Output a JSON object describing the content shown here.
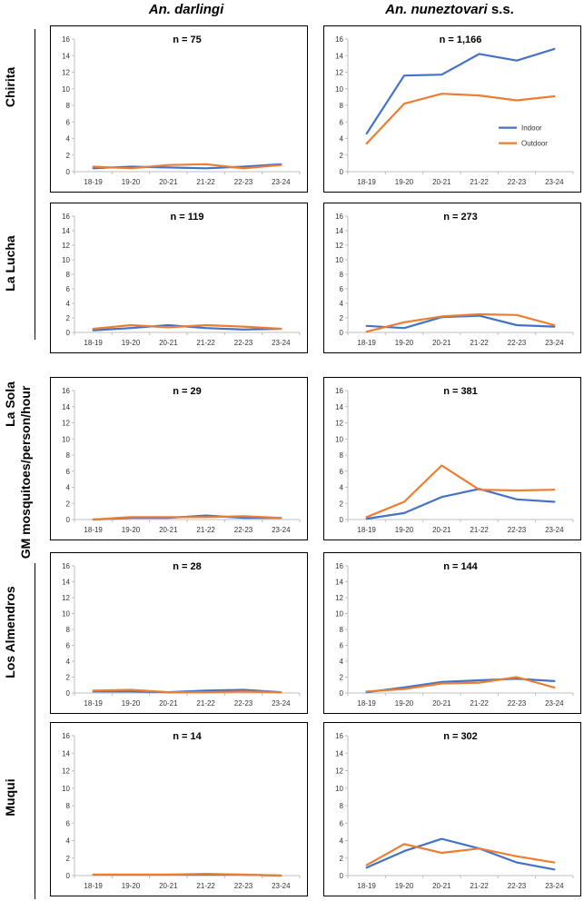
{
  "headers": {
    "left": "An. darlingi",
    "right_species": "An. nuneztovari",
    "right_suffix": "s.s."
  },
  "y_axis_title": "GM mosquitoes/person/hour",
  "legend": {
    "indoor": "Indoor",
    "outdoor": "Outdoor"
  },
  "colors": {
    "indoor": "#4472C4",
    "outdoor": "#ED7D31"
  },
  "rows": [
    {
      "site": "Chirita"
    },
    {
      "site": "La Lucha"
    },
    {
      "site": "La Sola"
    },
    {
      "site": "Los Almendros"
    },
    {
      "site": "Muqui"
    }
  ],
  "chart_data": [
    {
      "type": "line",
      "site": "Chirita",
      "species": "An. darlingi",
      "title": "n = 75",
      "categories": [
        "18-19",
        "19-20",
        "20-21",
        "21-22",
        "22-23",
        "23-24"
      ],
      "ylim": [
        0,
        16
      ],
      "yticks": [
        0,
        2,
        4,
        6,
        8,
        10,
        12,
        14,
        16
      ],
      "series": [
        {
          "name": "Indoor",
          "values": [
            0.4,
            0.6,
            0.5,
            0.4,
            0.6,
            0.9
          ]
        },
        {
          "name": "Outdoor",
          "values": [
            0.6,
            0.4,
            0.8,
            0.9,
            0.4,
            0.8
          ]
        }
      ]
    },
    {
      "type": "line",
      "site": "Chirita",
      "species": "An. nuneztovari s.s.",
      "title": "n = 1,166",
      "categories": [
        "18-19",
        "19-20",
        "20-21",
        "21-22",
        "22-23",
        "23-24"
      ],
      "ylim": [
        0,
        16
      ],
      "yticks": [
        0,
        2,
        4,
        6,
        8,
        10,
        12,
        14,
        16
      ],
      "series": [
        {
          "name": "Indoor",
          "values": [
            4.6,
            11.6,
            11.7,
            14.2,
            13.4,
            14.8
          ]
        },
        {
          "name": "Outdoor",
          "values": [
            3.4,
            8.2,
            9.4,
            9.2,
            8.6,
            9.1
          ]
        }
      ],
      "legend": true
    },
    {
      "type": "line",
      "site": "La Lucha",
      "species": "An. darlingi",
      "title": "n = 119",
      "categories": [
        "18-19",
        "19-20",
        "20-21",
        "21-22",
        "22-23",
        "23-24"
      ],
      "ylim": [
        0,
        16
      ],
      "yticks": [
        0,
        2,
        4,
        6,
        8,
        10,
        12,
        14,
        16
      ],
      "series": [
        {
          "name": "Indoor",
          "values": [
            0.3,
            0.6,
            1.0,
            0.6,
            0.4,
            0.5
          ]
        },
        {
          "name": "Outdoor",
          "values": [
            0.5,
            1.0,
            0.7,
            1.0,
            0.8,
            0.5
          ]
        }
      ]
    },
    {
      "type": "line",
      "site": "La Lucha",
      "species": "An. nuneztovari s.s.",
      "title": "n = 273",
      "categories": [
        "18-19",
        "19-20",
        "20-21",
        "21-22",
        "22-23",
        "23-24"
      ],
      "ylim": [
        0,
        16
      ],
      "yticks": [
        0,
        2,
        4,
        6,
        8,
        10,
        12,
        14,
        16
      ],
      "series": [
        {
          "name": "Indoor",
          "values": [
            0.9,
            0.6,
            2.1,
            2.3,
            1.0,
            0.8
          ]
        },
        {
          "name": "Outdoor",
          "values": [
            0.1,
            1.4,
            2.2,
            2.5,
            2.4,
            1.0
          ]
        }
      ]
    },
    {
      "type": "line",
      "site": "La Sola",
      "species": "An. darlingi",
      "title": "n = 29",
      "categories": [
        "18-19",
        "19-20",
        "20-21",
        "21-22",
        "22-23",
        "23-24"
      ],
      "ylim": [
        0,
        16
      ],
      "yticks": [
        0,
        2,
        4,
        6,
        8,
        10,
        12,
        14,
        16
      ],
      "series": [
        {
          "name": "Indoor",
          "values": [
            0.0,
            0.2,
            0.2,
            0.5,
            0.2,
            0.2
          ]
        },
        {
          "name": "Outdoor",
          "values": [
            0.0,
            0.3,
            0.3,
            0.3,
            0.4,
            0.2
          ]
        }
      ]
    },
    {
      "type": "line",
      "site": "La Sola",
      "species": "An. nuneztovari s.s.",
      "title": "n = 381",
      "categories": [
        "18-19",
        "19-20",
        "20-21",
        "21-22",
        "22-23",
        "23-24"
      ],
      "ylim": [
        0,
        16
      ],
      "yticks": [
        0,
        2,
        4,
        6,
        8,
        10,
        12,
        14,
        16
      ],
      "series": [
        {
          "name": "Indoor",
          "values": [
            0.1,
            0.8,
            2.8,
            3.8,
            2.5,
            2.2
          ]
        },
        {
          "name": "Outdoor",
          "values": [
            0.3,
            2.2,
            6.7,
            3.7,
            3.6,
            3.7
          ]
        }
      ]
    },
    {
      "type": "line",
      "site": "Los Almendros",
      "species": "An. darlingi",
      "title": "n = 28",
      "categories": [
        "18-19",
        "19-20",
        "20-21",
        "21-22",
        "22-23",
        "23-24"
      ],
      "ylim": [
        0,
        16
      ],
      "yticks": [
        0,
        2,
        4,
        6,
        8,
        10,
        12,
        14,
        16
      ],
      "series": [
        {
          "name": "Indoor",
          "values": [
            0.2,
            0.2,
            0.1,
            0.3,
            0.4,
            0.1
          ]
        },
        {
          "name": "Outdoor",
          "values": [
            0.3,
            0.4,
            0.1,
            0.1,
            0.2,
            0.1
          ]
        }
      ]
    },
    {
      "type": "line",
      "site": "Los Almendros",
      "species": "An. nuneztovari s.s.",
      "title": "n = 144",
      "categories": [
        "18-19",
        "19-20",
        "20-21",
        "21-22",
        "22-23",
        "23-24"
      ],
      "ylim": [
        0,
        16
      ],
      "yticks": [
        0,
        2,
        4,
        6,
        8,
        10,
        12,
        14,
        16
      ],
      "series": [
        {
          "name": "Indoor",
          "values": [
            0.1,
            0.7,
            1.4,
            1.6,
            1.8,
            1.5
          ]
        },
        {
          "name": "Outdoor",
          "values": [
            0.2,
            0.5,
            1.2,
            1.3,
            2.0,
            0.7
          ]
        }
      ]
    },
    {
      "type": "line",
      "site": "Muqui",
      "species": "An. darlingi",
      "title": "n = 14",
      "categories": [
        "18-19",
        "19-20",
        "20-21",
        "21-22",
        "22-23",
        "23-24"
      ],
      "ylim": [
        0,
        16
      ],
      "yticks": [
        0,
        2,
        4,
        6,
        8,
        10,
        12,
        14,
        16
      ],
      "series": [
        {
          "name": "Indoor",
          "values": [
            0.1,
            0.1,
            0.1,
            0.1,
            0.1,
            0.0
          ]
        },
        {
          "name": "Outdoor",
          "values": [
            0.1,
            0.1,
            0.1,
            0.2,
            0.1,
            0.0
          ]
        }
      ]
    },
    {
      "type": "line",
      "site": "Muqui",
      "species": "An. nuneztovari s.s.",
      "title": "n = 302",
      "categories": [
        "18-19",
        "19-20",
        "20-21",
        "21-22",
        "22-23",
        "23-24"
      ],
      "ylim": [
        0,
        16
      ],
      "yticks": [
        0,
        2,
        4,
        6,
        8,
        10,
        12,
        14,
        16
      ],
      "series": [
        {
          "name": "Indoor",
          "values": [
            0.9,
            2.8,
            4.2,
            3.1,
            1.5,
            0.7
          ]
        },
        {
          "name": "Outdoor",
          "values": [
            1.2,
            3.6,
            2.6,
            3.1,
            2.2,
            1.5
          ]
        }
      ]
    }
  ]
}
